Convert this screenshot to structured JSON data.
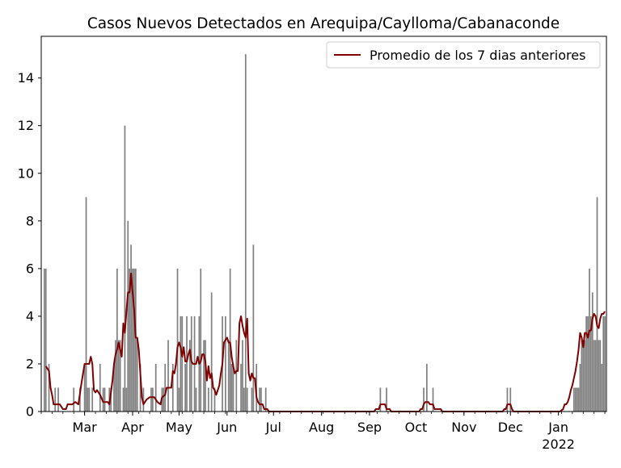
{
  "chart_data": {
    "type": "bar",
    "title": "Casos Nuevos Detectados en Arequipa/Caylloma/Cabanaconde",
    "xlabel": "",
    "ylabel": "",
    "x_start": "2021-02-01",
    "x_end": "2022-01-31",
    "ylim": [
      0,
      15.75
    ],
    "yticks": [
      0,
      2,
      4,
      6,
      8,
      10,
      12,
      14
    ],
    "xticks": [
      {
        "date": "2021-03-01",
        "label": "Mar"
      },
      {
        "date": "2021-04-01",
        "label": "Apr"
      },
      {
        "date": "2021-05-01",
        "label": "May"
      },
      {
        "date": "2021-06-01",
        "label": "Jun"
      },
      {
        "date": "2021-07-01",
        "label": "Jul"
      },
      {
        "date": "2021-08-01",
        "label": "Aug"
      },
      {
        "date": "2021-09-01",
        "label": "Sep"
      },
      {
        "date": "2021-10-01",
        "label": "Oct"
      },
      {
        "date": "2021-11-01",
        "label": "Nov"
      },
      {
        "date": "2021-12-01",
        "label": "Dec"
      },
      {
        "date": "2022-01-01",
        "label": "Jan",
        "sublabel": "2022"
      }
    ],
    "grid": false,
    "legend": {
      "position": "top-right",
      "entries": [
        "Promedio de los 7 dias anteriores"
      ]
    },
    "colors": {
      "bars": "#808080",
      "line": "#800000"
    },
    "series": [
      {
        "kind": "bar",
        "values": [
          [
            2,
            6
          ],
          [
            3,
            6
          ],
          [
            5,
            2
          ],
          [
            9,
            1
          ],
          [
            11,
            1
          ],
          [
            21,
            1
          ],
          [
            25,
            1
          ],
          [
            28,
            2
          ],
          [
            29,
            9
          ],
          [
            30,
            1
          ],
          [
            31,
            1
          ],
          [
            33,
            1
          ],
          [
            38,
            2
          ],
          [
            40,
            1
          ],
          [
            41,
            1
          ],
          [
            44,
            1
          ],
          [
            45,
            1
          ],
          [
            47,
            2
          ],
          [
            48,
            3
          ],
          [
            49,
            6
          ],
          [
            50,
            3
          ],
          [
            51,
            3
          ],
          [
            53,
            1
          ],
          [
            54,
            12
          ],
          [
            55,
            1
          ],
          [
            56,
            8
          ],
          [
            57,
            6
          ],
          [
            58,
            7
          ],
          [
            59,
            6
          ],
          [
            60,
            6
          ],
          [
            61,
            6
          ],
          [
            62,
            3
          ],
          [
            64,
            2
          ],
          [
            66,
            1
          ],
          [
            71,
            1
          ],
          [
            72,
            1
          ],
          [
            74,
            2
          ],
          [
            78,
            1
          ],
          [
            79,
            1
          ],
          [
            80,
            2
          ],
          [
            82,
            3
          ],
          [
            85,
            2
          ],
          [
            88,
            6
          ],
          [
            89,
            1
          ],
          [
            90,
            4
          ],
          [
            91,
            4
          ],
          [
            93,
            2
          ],
          [
            94,
            4
          ],
          [
            96,
            3
          ],
          [
            97,
            4
          ],
          [
            99,
            4
          ],
          [
            100,
            1
          ],
          [
            102,
            4
          ],
          [
            103,
            6
          ],
          [
            105,
            3
          ],
          [
            106,
            3
          ],
          [
            108,
            1
          ],
          [
            110,
            5
          ],
          [
            112,
            1
          ],
          [
            117,
            4
          ],
          [
            119,
            4
          ],
          [
            121,
            3
          ],
          [
            122,
            6
          ],
          [
            123,
            2
          ],
          [
            124,
            2
          ],
          [
            126,
            3
          ],
          [
            129,
            2
          ],
          [
            130,
            3
          ],
          [
            131,
            1
          ],
          [
            132,
            15
          ],
          [
            133,
            1
          ],
          [
            136,
            1
          ],
          [
            137,
            7
          ],
          [
            139,
            2
          ],
          [
            141,
            1
          ],
          [
            142,
            1
          ],
          [
            145,
            1
          ],
          [
            219,
            1
          ],
          [
            223,
            1
          ],
          [
            247,
            1
          ],
          [
            249,
            2
          ],
          [
            253,
            1
          ],
          [
            301,
            1
          ],
          [
            303,
            1
          ],
          [
            344,
            1
          ],
          [
            345,
            1
          ],
          [
            346,
            1
          ],
          [
            347,
            1
          ],
          [
            348,
            2
          ],
          [
            349,
            3
          ],
          [
            350,
            3
          ],
          [
            351,
            3
          ],
          [
            352,
            4
          ],
          [
            353,
            4
          ],
          [
            354,
            6
          ],
          [
            355,
            4
          ],
          [
            356,
            5
          ],
          [
            357,
            3
          ],
          [
            358,
            3
          ],
          [
            359,
            9
          ],
          [
            360,
            3
          ],
          [
            361,
            3
          ],
          [
            362,
            2
          ],
          [
            363,
            4
          ],
          [
            364,
            4
          ]
        ]
      },
      {
        "kind": "line",
        "name": "Promedio de los 7 dias anteriores",
        "values": [
          [
            3,
            1.9
          ],
          [
            5,
            1.7
          ],
          [
            6,
            1.0
          ],
          [
            7,
            0.7
          ],
          [
            8,
            0.3
          ],
          [
            12,
            0.3
          ],
          [
            14,
            0.1
          ],
          [
            16,
            0.1
          ],
          [
            17,
            0.3
          ],
          [
            20,
            0.3
          ],
          [
            22,
            0.4
          ],
          [
            24,
            0.3
          ],
          [
            26,
            1.2
          ],
          [
            27,
            1.6
          ],
          [
            28,
            2.0
          ],
          [
            31,
            2.0
          ],
          [
            32,
            2.3
          ],
          [
            33,
            2.0
          ],
          [
            34,
            0.9
          ],
          [
            35,
            0.8
          ],
          [
            36,
            0.9
          ],
          [
            38,
            0.7
          ],
          [
            40,
            0.4
          ],
          [
            43,
            0.4
          ],
          [
            44,
            0.3
          ],
          [
            45,
            0.8
          ],
          [
            46,
            1.3
          ],
          [
            47,
            2.0
          ],
          [
            48,
            2.4
          ],
          [
            49,
            2.6
          ],
          [
            50,
            2.9
          ],
          [
            51,
            2.6
          ],
          [
            52,
            2.3
          ],
          [
            53,
            3.7
          ],
          [
            54,
            3.3
          ],
          [
            55,
            4.2
          ],
          [
            56,
            5.0
          ],
          [
            57,
            5.0
          ],
          [
            58,
            5.8
          ],
          [
            59,
            5.0
          ],
          [
            60,
            4.3
          ],
          [
            61,
            3.1
          ],
          [
            62,
            3.1
          ],
          [
            63,
            2.6
          ],
          [
            64,
            1.6
          ],
          [
            65,
            0.6
          ],
          [
            66,
            0.3
          ],
          [
            67,
            0.4
          ],
          [
            68,
            0.5
          ],
          [
            70,
            0.6
          ],
          [
            72,
            0.6
          ],
          [
            73,
            0.6
          ],
          [
            75,
            0.4
          ],
          [
            77,
            0.3
          ],
          [
            78,
            0.6
          ],
          [
            80,
            0.7
          ],
          [
            81,
            1.0
          ],
          [
            84,
            1.0
          ],
          [
            85,
            1.7
          ],
          [
            86,
            1.6
          ],
          [
            87,
            2.0
          ],
          [
            88,
            2.7
          ],
          [
            89,
            2.9
          ],
          [
            90,
            2.7
          ],
          [
            91,
            2.3
          ],
          [
            92,
            2.7
          ],
          [
            93,
            2.1
          ],
          [
            94,
            2.1
          ],
          [
            95,
            2.4
          ],
          [
            96,
            2.6
          ],
          [
            97,
            2.1
          ],
          [
            98,
            2.0
          ],
          [
            99,
            2.0
          ],
          [
            100,
            2.0
          ],
          [
            101,
            2.3
          ],
          [
            102,
            2.0
          ],
          [
            103,
            2.1
          ],
          [
            104,
            2.4
          ],
          [
            105,
            2.4
          ],
          [
            106,
            2.1
          ],
          [
            107,
            1.3
          ],
          [
            108,
            1.9
          ],
          [
            109,
            1.4
          ],
          [
            110,
            1.6
          ],
          [
            111,
            1.0
          ],
          [
            112,
            0.9
          ],
          [
            113,
            0.7
          ],
          [
            114,
            0.9
          ],
          [
            115,
            1.1
          ],
          [
            116,
            1.6
          ],
          [
            117,
            2.0
          ],
          [
            118,
            2.9
          ],
          [
            119,
            3.0
          ],
          [
            120,
            3.1
          ],
          [
            121,
            2.9
          ],
          [
            122,
            2.9
          ],
          [
            123,
            2.3
          ],
          [
            124,
            1.9
          ],
          [
            125,
            1.6
          ],
          [
            126,
            1.7
          ],
          [
            127,
            1.7
          ],
          [
            128,
            3.7
          ],
          [
            129,
            4.0
          ],
          [
            130,
            3.6
          ],
          [
            131,
            3.3
          ],
          [
            132,
            3.1
          ],
          [
            133,
            3.9
          ],
          [
            134,
            1.6
          ],
          [
            135,
            1.3
          ],
          [
            136,
            1.6
          ],
          [
            137,
            1.4
          ],
          [
            138,
            1.4
          ],
          [
            139,
            0.6
          ],
          [
            140,
            0.4
          ],
          [
            141,
            0.3
          ],
          [
            143,
            0.3
          ],
          [
            144,
            0.1
          ],
          [
            146,
            0.1
          ],
          [
            147,
            0.0
          ],
          [
            215,
            0.0
          ],
          [
            216,
            0.1
          ],
          [
            218,
            0.1
          ],
          [
            219,
            0.3
          ],
          [
            220,
            0.3
          ],
          [
            222,
            0.3
          ],
          [
            223,
            0.1
          ],
          [
            225,
            0.1
          ],
          [
            226,
            0.0
          ],
          [
            244,
            0.0
          ],
          [
            245,
            0.1
          ],
          [
            246,
            0.1
          ],
          [
            247,
            0.3
          ],
          [
            248,
            0.4
          ],
          [
            250,
            0.4
          ],
          [
            251,
            0.3
          ],
          [
            253,
            0.3
          ],
          [
            254,
            0.1
          ],
          [
            258,
            0.1
          ],
          [
            259,
            0.0
          ],
          [
            298,
            0.0
          ],
          [
            299,
            0.1
          ],
          [
            300,
            0.1
          ],
          [
            301,
            0.3
          ],
          [
            303,
            0.3
          ],
          [
            304,
            0.1
          ],
          [
            305,
            0.0
          ],
          [
            335,
            0.0
          ],
          [
            337,
            0.1
          ],
          [
            338,
            0.3
          ],
          [
            339,
            0.3
          ],
          [
            340,
            0.4
          ],
          [
            341,
            0.6
          ],
          [
            342,
            0.9
          ],
          [
            343,
            1.1
          ],
          [
            344,
            1.4
          ],
          [
            345,
            1.7
          ],
          [
            346,
            2.1
          ],
          [
            347,
            2.6
          ],
          [
            348,
            3.3
          ],
          [
            349,
            3.1
          ],
          [
            350,
            2.7
          ],
          [
            351,
            3.3
          ],
          [
            352,
            3.3
          ],
          [
            353,
            3.1
          ],
          [
            354,
            3.4
          ],
          [
            355,
            3.4
          ],
          [
            356,
            3.9
          ],
          [
            357,
            4.1
          ],
          [
            358,
            4.0
          ],
          [
            359,
            3.6
          ],
          [
            360,
            3.5
          ],
          [
            361,
            3.9
          ],
          [
            362,
            4.1
          ],
          [
            363,
            4.1
          ],
          [
            364,
            4.2
          ]
        ]
      }
    ]
  }
}
